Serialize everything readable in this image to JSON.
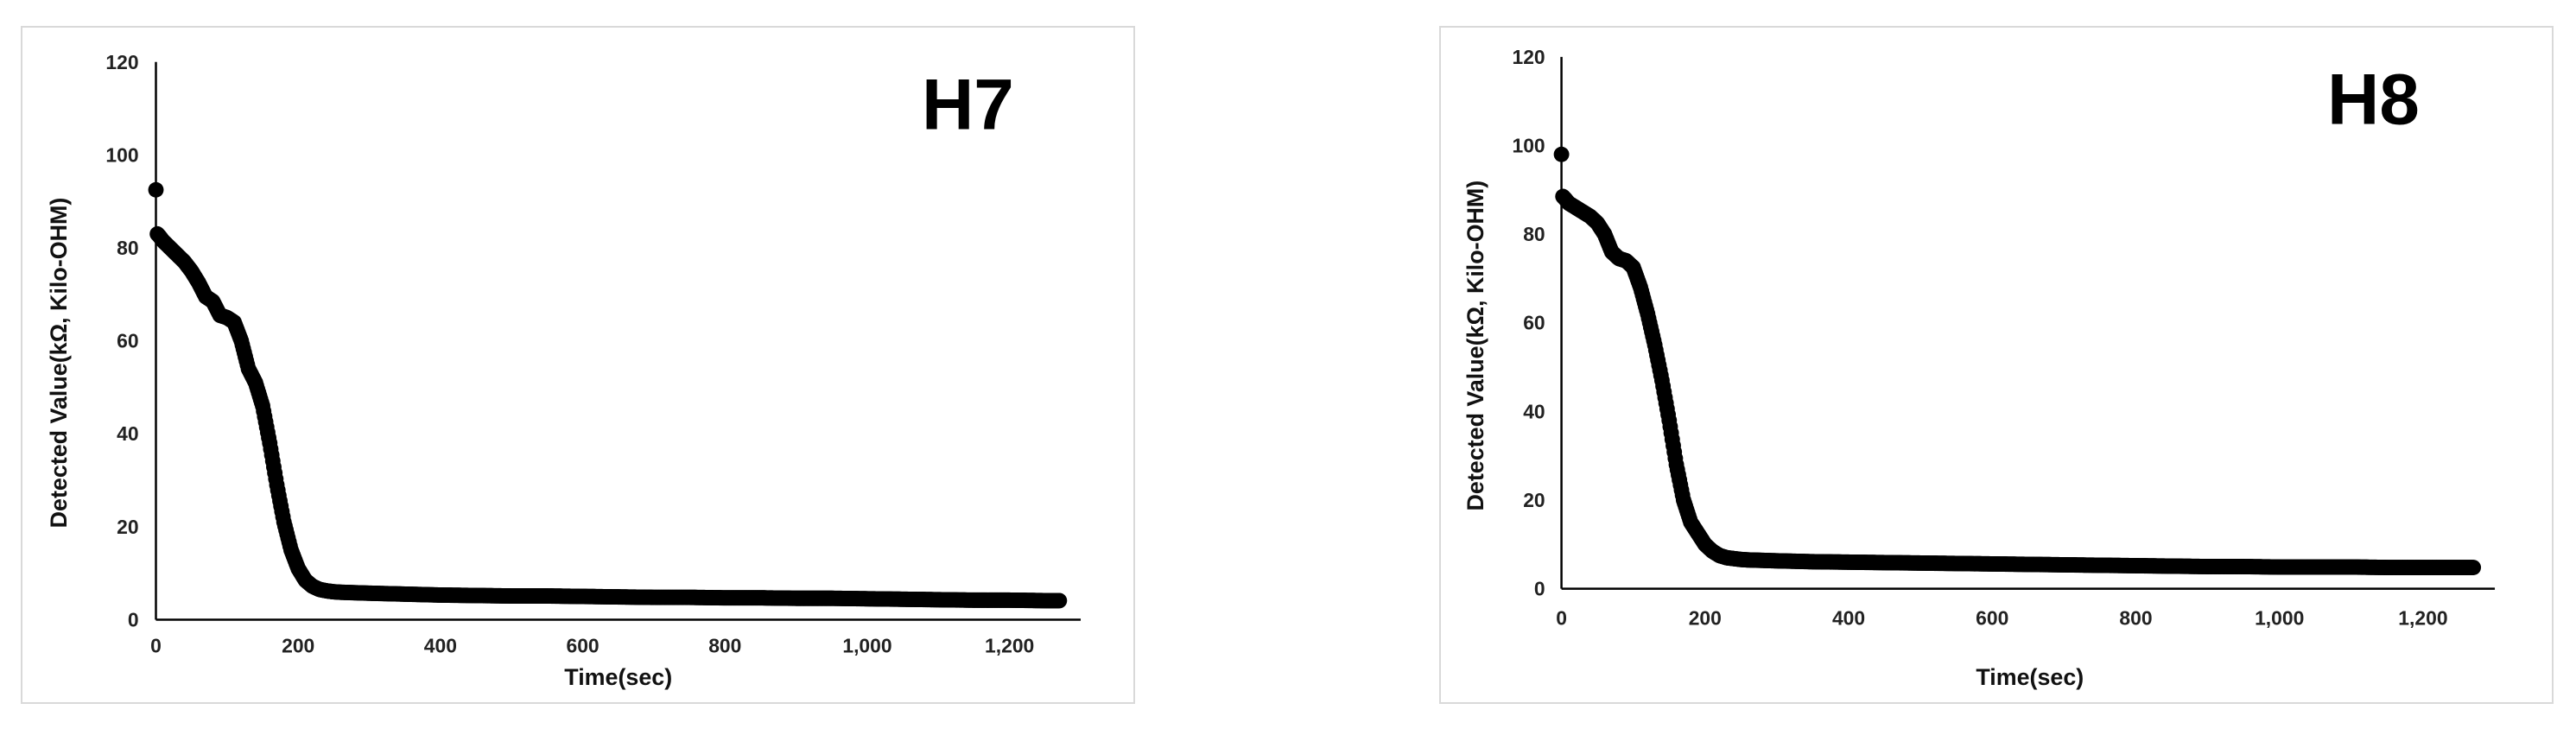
{
  "chart_data": [
    {
      "type": "scatter",
      "title": "H7",
      "xlabel": "Time(sec)",
      "ylabel": "Detected Value(kΩ, Kilo-OHM)",
      "xlim": [
        0,
        1300
      ],
      "ylim": [
        0,
        120
      ],
      "xticks": [
        0,
        200,
        400,
        600,
        800,
        1000,
        1200
      ],
      "xtick_labels": [
        "0",
        "200",
        "400",
        "600",
        "800",
        "1,000",
        "1,200"
      ],
      "yticks": [
        0,
        20,
        40,
        60,
        80,
        100,
        120
      ],
      "ytick_labels": [
        "0",
        "20",
        "40",
        "60",
        "80",
        "100",
        "120"
      ],
      "grid": false,
      "marker_color": "#000000",
      "series": [
        {
          "x": [
            0,
            2,
            5,
            10,
            20,
            30,
            40,
            50,
            60,
            70,
            80,
            90,
            100,
            110,
            120,
            130,
            140,
            150,
            160,
            170,
            180,
            190,
            200,
            210,
            220,
            230,
            240,
            250,
            260,
            280,
            300,
            350,
            400,
            450,
            500,
            550,
            600,
            650,
            700,
            750,
            800,
            850,
            900,
            950,
            1000,
            1050,
            1100,
            1150,
            1200,
            1250,
            1270
          ],
          "y": [
            92.5,
            83,
            82.5,
            81.5,
            80,
            78.5,
            77,
            75,
            72.5,
            69.5,
            68.5,
            65.5,
            65,
            64,
            60,
            54,
            51,
            46,
            38,
            29,
            21,
            15,
            11,
            8.5,
            7.2,
            6.5,
            6.2,
            6,
            5.9,
            5.8,
            5.7,
            5.5,
            5.3,
            5.2,
            5.1,
            5.1,
            5,
            4.9,
            4.8,
            4.8,
            4.7,
            4.7,
            4.6,
            4.6,
            4.5,
            4.4,
            4.3,
            4.2,
            4.2,
            4.1,
            4.1
          ]
        }
      ]
    },
    {
      "type": "scatter",
      "title": "H8",
      "xlabel": "Time(sec)",
      "ylabel": "Detected Value(kΩ, Kilo-OHM)",
      "xlim": [
        0,
        1300
      ],
      "ylim": [
        0,
        120
      ],
      "xticks": [
        0,
        200,
        400,
        600,
        800,
        1000,
        1200
      ],
      "xtick_labels": [
        "0",
        "200",
        "400",
        "600",
        "800",
        "1,000",
        "1,200"
      ],
      "yticks": [
        0,
        20,
        40,
        60,
        80,
        100,
        120
      ],
      "ytick_labels": [
        "0",
        "20",
        "40",
        "60",
        "80",
        "100",
        "120"
      ],
      "grid": false,
      "marker_color": "#000000",
      "series": [
        {
          "x": [
            0,
            2,
            5,
            10,
            20,
            30,
            40,
            50,
            60,
            70,
            80,
            90,
            100,
            110,
            120,
            130,
            140,
            150,
            160,
            170,
            180,
            190,
            200,
            210,
            220,
            230,
            240,
            250,
            260,
            280,
            300,
            350,
            400,
            450,
            500,
            550,
            600,
            650,
            700,
            750,
            800,
            850,
            900,
            950,
            1000,
            1050,
            1100,
            1150,
            1200,
            1250,
            1270
          ],
          "y": [
            98,
            88.5,
            88,
            87,
            86,
            85,
            84,
            82.5,
            80,
            76,
            74.5,
            74,
            72.5,
            68,
            62,
            55,
            47,
            38,
            28,
            20,
            15,
            12.5,
            10,
            8.5,
            7.5,
            7,
            6.8,
            6.6,
            6.5,
            6.4,
            6.3,
            6.1,
            6,
            5.9,
            5.8,
            5.7,
            5.6,
            5.5,
            5.4,
            5.3,
            5.2,
            5.1,
            5,
            5,
            4.9,
            4.9,
            4.9,
            4.8,
            4.8,
            4.8,
            4.8
          ]
        }
      ]
    }
  ]
}
